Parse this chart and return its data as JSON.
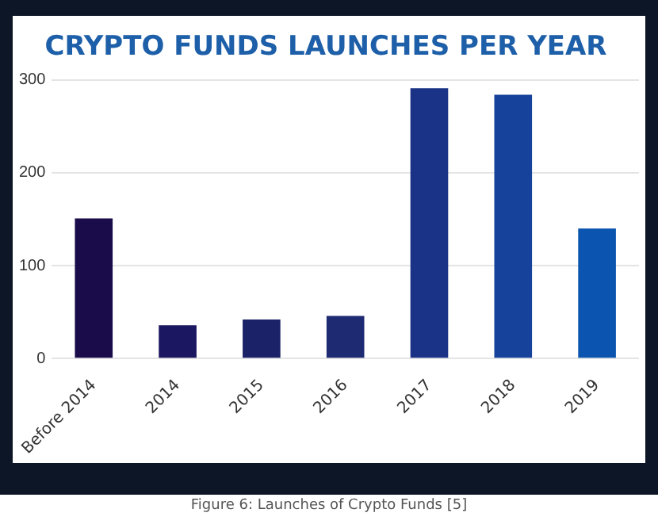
{
  "chart_data": {
    "type": "bar",
    "title": "CRYPTO FUNDS LAUNCHES PER YEAR",
    "categories": [
      "Before 2014",
      "2014",
      "2015",
      "2016",
      "2017",
      "2018",
      "2019"
    ],
    "values": [
      151,
      36,
      42,
      46,
      291,
      284,
      140
    ],
    "colors": [
      "#1a0b4a",
      "#1b1760",
      "#1c2268",
      "#1e2a72",
      "#1a3386",
      "#16429c",
      "#0b55b0"
    ],
    "ylim": [
      0,
      300
    ],
    "yticks": [
      0,
      100,
      200,
      300
    ],
    "grid": "y",
    "legend": false,
    "annotations": [
      "Figure 6: Launches of Crypto Funds [5]"
    ]
  }
}
